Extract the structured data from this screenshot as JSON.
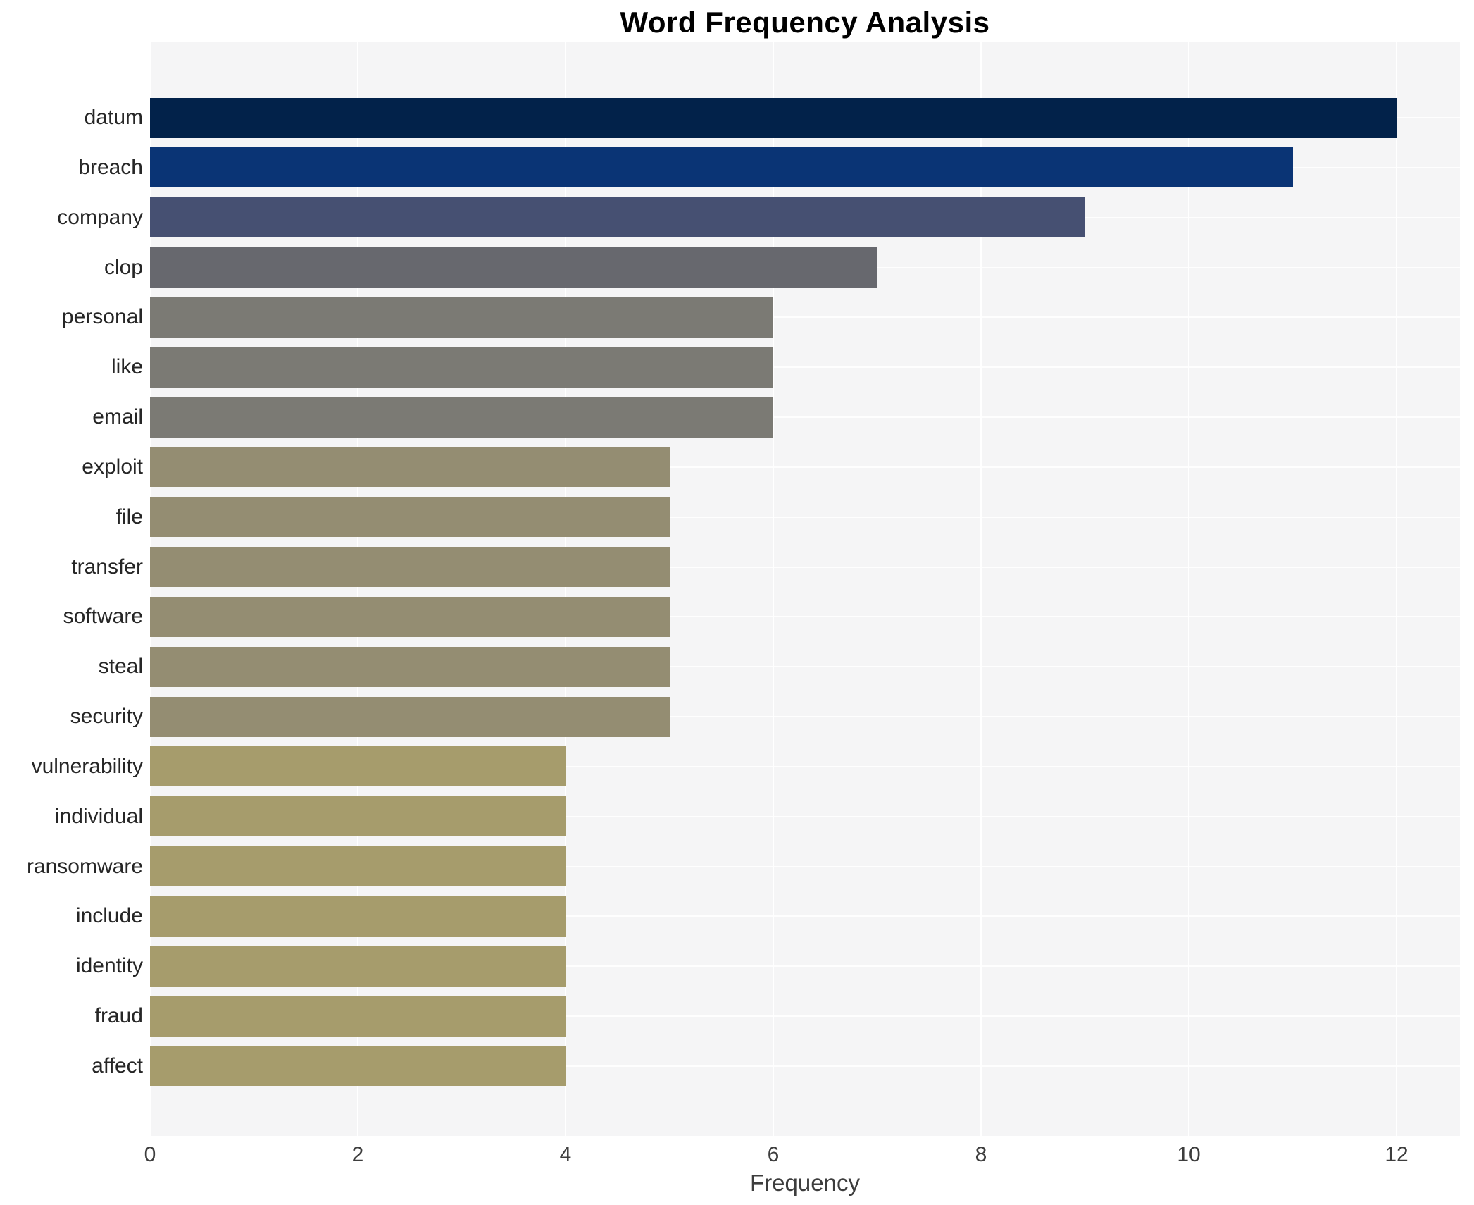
{
  "chart_data": {
    "type": "bar",
    "orientation": "horizontal",
    "title": "Word Frequency Analysis",
    "xlabel": "Frequency",
    "ylabel": "",
    "categories": [
      "datum",
      "breach",
      "company",
      "clop",
      "personal",
      "like",
      "email",
      "exploit",
      "file",
      "transfer",
      "software",
      "steal",
      "security",
      "vulnerability",
      "individual",
      "ransomware",
      "include",
      "identity",
      "fraud",
      "affect"
    ],
    "values": [
      12,
      11,
      9,
      7,
      6,
      6,
      6,
      5,
      5,
      5,
      5,
      5,
      5,
      4,
      4,
      4,
      4,
      4,
      4,
      4
    ],
    "bar_colors": [
      "#02224a",
      "#0a3475",
      "#465072",
      "#67686e",
      "#7b7a74",
      "#7b7a74",
      "#7b7a74",
      "#948d72",
      "#948d72",
      "#948d72",
      "#948d72",
      "#948d72",
      "#948d72",
      "#a69c6c",
      "#a69c6c",
      "#a69c6c",
      "#a69c6c",
      "#a69c6c",
      "#a69c6c",
      "#a69c6c"
    ],
    "xticks": [
      0,
      2,
      4,
      6,
      8,
      10,
      12
    ],
    "xlim": [
      0,
      12.61
    ],
    "grid": true,
    "legend": false,
    "plot_background": "#f5f5f6",
    "grid_color": "#ffffff",
    "figure_background": "#ffffff"
  }
}
